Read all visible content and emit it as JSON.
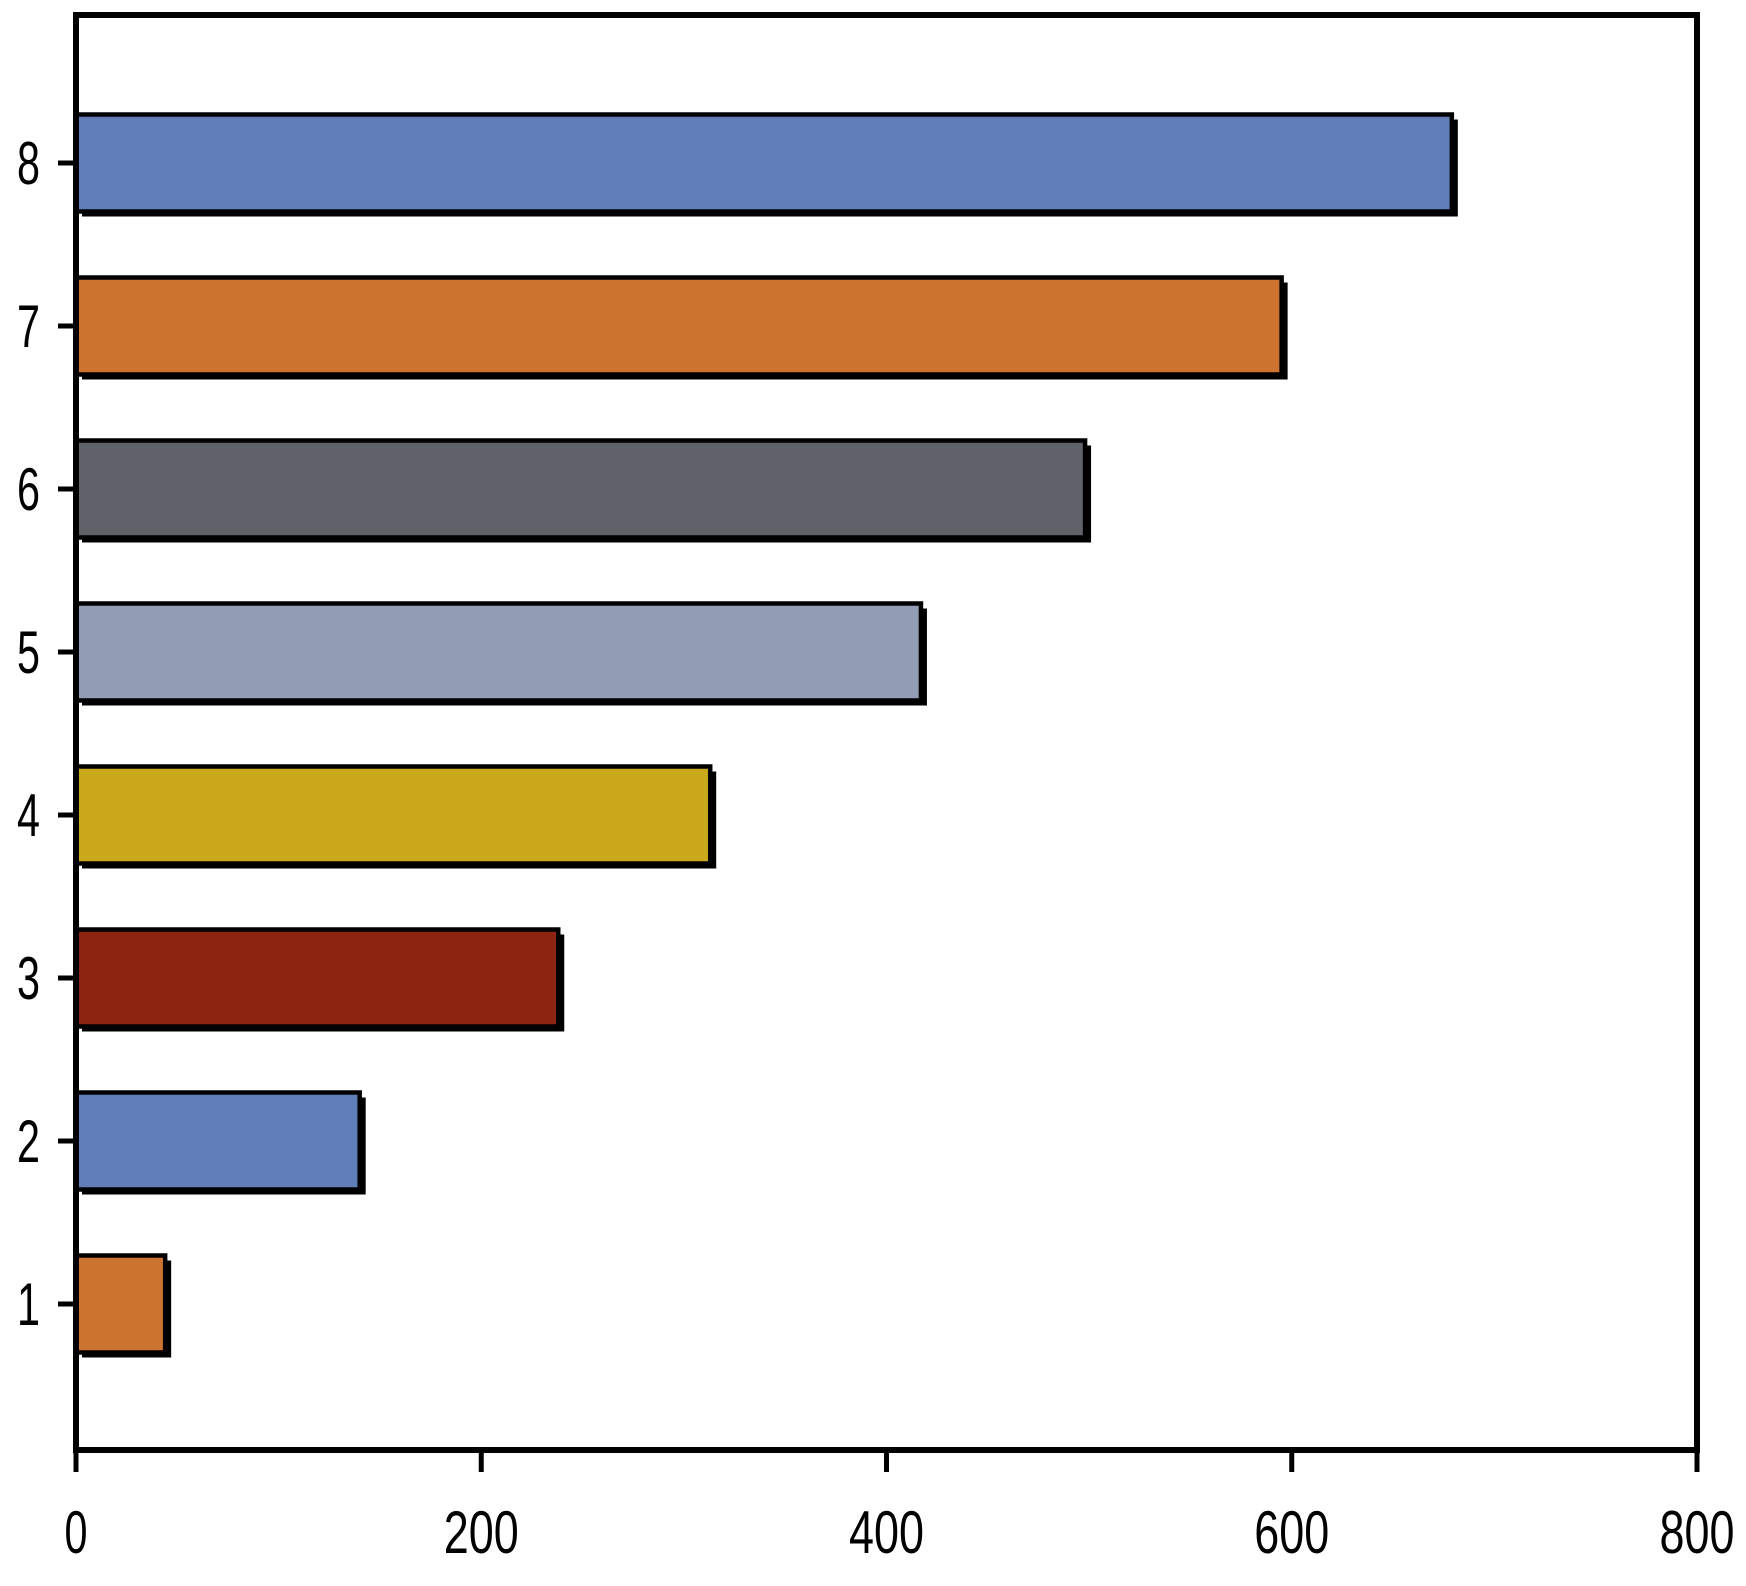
{
  "chart_data": {
    "type": "bar",
    "orientation": "horizontal",
    "title": "",
    "xlabel": "",
    "ylabel": "",
    "categories": [
      "1",
      "2",
      "3",
      "4",
      "5",
      "6",
      "7",
      "8"
    ],
    "values": [
      44,
      140,
      238,
      313,
      417,
      498,
      595,
      679
    ],
    "bar_colors": [
      "#CD7330",
      "#617EB8",
      "#8D2411",
      "#CAAA1C",
      "#929CB5",
      "#5F6269",
      "#CD7330",
      "#617EB8"
    ],
    "xlim": [
      0,
      800
    ],
    "x_tick_labels": [
      "0",
      "200",
      "400",
      "600",
      "800"
    ],
    "x_tick_values": [
      0,
      200,
      400,
      600,
      800
    ],
    "grid": false,
    "legend_position": "none",
    "bar_border_color": "#000000",
    "axis_color": "#000000",
    "tick_label_color": "#000000",
    "background_color": "#ffffff"
  }
}
